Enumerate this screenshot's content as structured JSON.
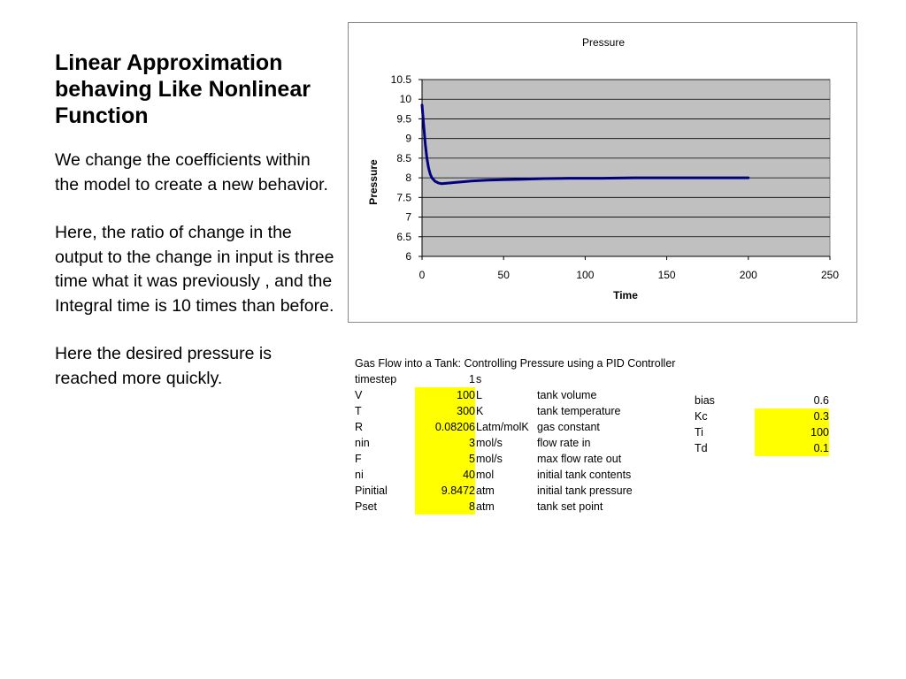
{
  "slide": {
    "title": "Linear Approximation behaving Like Nonlinear Function",
    "paragraphs": [
      "We change the coefficients within the model to create a new behavior.",
      "Here, the ratio of change in the output to the change in input is three time what it was previously , and the Integral time is 10 times  than before.",
      "Here the desired pressure is reached more quickly."
    ]
  },
  "chart_data": {
    "type": "line",
    "title": "Pressure",
    "xlabel": "Time",
    "ylabel": "Pressure",
    "xlim": [
      0,
      250
    ],
    "ylim": [
      6,
      10.5
    ],
    "xticks": [
      "0",
      "50",
      "100",
      "150",
      "200",
      "250"
    ],
    "yticks": [
      "6",
      "6.5",
      "7",
      "7.5",
      "8",
      "8.5",
      "9",
      "9.5",
      "10",
      "10.5"
    ],
    "grid": "horizontal",
    "plot_background": "#c0c0c0",
    "series": [
      {
        "color": "#000080",
        "x": [
          0,
          1,
          2,
          3,
          4,
          5,
          6,
          8,
          10,
          12,
          15,
          20,
          25,
          30,
          40,
          50,
          60,
          75,
          90,
          110,
          130,
          150,
          175,
          200
        ],
        "y": [
          9.85,
          9.35,
          8.85,
          8.5,
          8.25,
          8.1,
          8.0,
          7.91,
          7.87,
          7.85,
          7.86,
          7.88,
          7.9,
          7.92,
          7.94,
          7.95,
          7.96,
          7.98,
          7.99,
          7.99,
          8.0,
          8.0,
          8.0,
          8.0
        ]
      }
    ]
  },
  "spreadsheet": {
    "header": "Gas Flow into a Tank: Controlling Pressure using a PID Controller",
    "timestep": {
      "name": "timestep",
      "value": "1",
      "unit": "s"
    },
    "rows": [
      {
        "name": "V",
        "value": "100",
        "unit": "L",
        "desc": "tank volume"
      },
      {
        "name": "T",
        "value": "300",
        "unit": "K",
        "desc": "tank temperature"
      },
      {
        "name": "R",
        "value": "0.08206",
        "unit": "Latm/molK",
        "desc": "gas constant"
      },
      {
        "name": "nin",
        "value": "3",
        "unit": "mol/s",
        "desc": "flow rate in"
      },
      {
        "name": "F",
        "value": "5",
        "unit": "mol/s",
        "desc": "max flow rate out"
      },
      {
        "name": "ni",
        "value": "40",
        "unit": "mol",
        "desc": "initial tank contents"
      },
      {
        "name": "Pinitial",
        "value": "9.8472",
        "unit": "atm",
        "desc": "initial tank pressure"
      },
      {
        "name": "Pset",
        "value": "8",
        "unit": "atm",
        "desc": "tank set point"
      }
    ],
    "params": [
      {
        "name": "bias",
        "value": "0.6",
        "highlight": false
      },
      {
        "name": "Kc",
        "value": "0.3",
        "highlight": true
      },
      {
        "name": "Ti",
        "value": "100",
        "highlight": true
      },
      {
        "name": "Td",
        "value": "0.1",
        "highlight": true
      }
    ],
    "highlight_color": "#ffff00"
  }
}
